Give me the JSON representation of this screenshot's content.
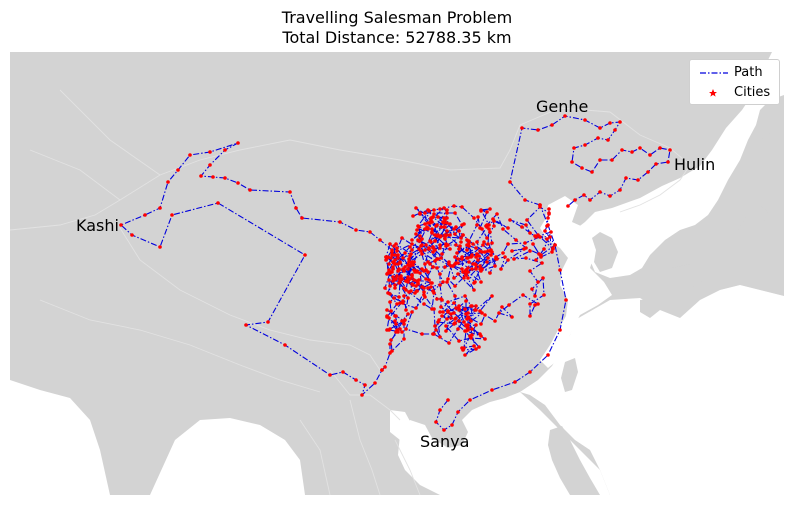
{
  "title": "Travelling Salesman Problem",
  "subtitle": "Total Distance: 52788.35 km",
  "colors": {
    "land": "#d3d3d3",
    "border": "#e2e2e2",
    "path": "#0000dd",
    "city": "#ff0000"
  },
  "legend": {
    "entries": [
      {
        "label": "Path",
        "marker": "dash-dot-line"
      },
      {
        "label": "Cities",
        "marker": "red-star"
      }
    ]
  },
  "labels": {
    "genhe": "Genhe",
    "hulin": "Hulin",
    "kashi": "Kashi",
    "sanya": "Sanya"
  }
}
